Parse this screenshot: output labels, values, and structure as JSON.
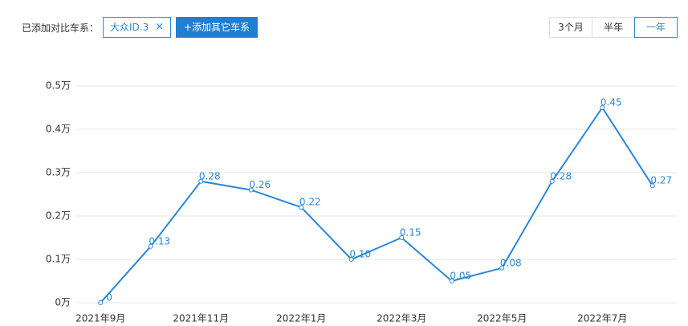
{
  "chart_data": {
    "type": "line",
    "categories": [
      "2021年9月",
      null,
      "2021年11月",
      null,
      "2022年1月",
      null,
      "2022年3月",
      null,
      "2022年5月",
      null,
      "2022年7月",
      null
    ],
    "series": [
      {
        "name": "大众ID.3",
        "color": "#2a87d8",
        "values": [
          0,
          0.13,
          0.28,
          0.26,
          0.22,
          0.1,
          0.15,
          0.05,
          0.08,
          0.28,
          0.45,
          0.27
        ],
        "value_labels": [
          "0",
          "0.13",
          "0.28",
          "0.26",
          "0.22",
          "0.10",
          "0.15",
          "0.05",
          "0.08",
          "0.28",
          "0.45",
          "0.27"
        ]
      }
    ],
    "ylim": [
      0,
      0.5
    ],
    "yticks": [
      {
        "value": 0,
        "label": "0万"
      },
      {
        "value": 0.1,
        "label": "0.1万"
      },
      {
        "value": 0.2,
        "label": "0.2万"
      },
      {
        "value": 0.3,
        "label": "0.3万"
      },
      {
        "value": 0.4,
        "label": "0.4万"
      },
      {
        "value": 0.5,
        "label": "0.5万"
      }
    ],
    "grid": true
  },
  "ui": {
    "compare_label": "已添加对比车系：",
    "tag": "大众ID.3",
    "tag_close": "×",
    "add_button": "+添加其它车系",
    "ranges": [
      "3个月",
      "半年",
      "一年"
    ],
    "selected_range": 2
  }
}
